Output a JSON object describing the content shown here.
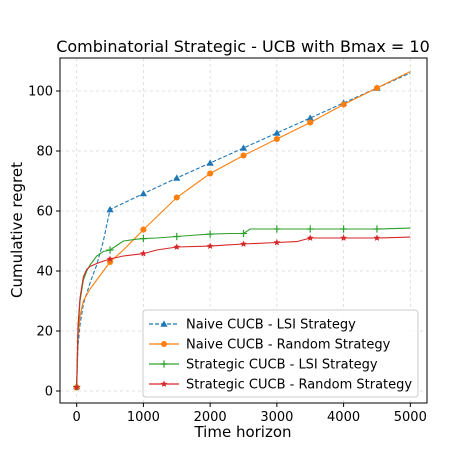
{
  "chart_data": {
    "type": "line",
    "title": "Combinatorial Strategic - UCB with Bmax = 10",
    "xlabel": "Time horizon",
    "ylabel": "Cumulative regret",
    "xlim": [
      -250,
      5250
    ],
    "ylim": [
      -4,
      111
    ],
    "xticks": [
      0,
      1000,
      2000,
      3000,
      4000,
      5000
    ],
    "yticks": [
      0,
      20,
      40,
      60,
      80,
      100
    ],
    "grid": true,
    "legend_position": "lower-right",
    "series": [
      {
        "name": "Naive CUCB - LSI Strategy",
        "color": "#1f77b4",
        "line_style": "dashed",
        "marker": "triangle",
        "x": [
          0,
          20,
          50,
          100,
          200,
          300,
          400,
          500,
          1000,
          1500,
          2000,
          2500,
          3000,
          3500,
          4000,
          4500,
          5000
        ],
        "y": [
          1.5,
          15,
          22,
          29,
          36,
          42,
          50,
          60.5,
          65.8,
          71,
          76,
          81,
          86,
          91,
          96,
          101,
          106
        ],
        "marker_x": [
          0,
          500,
          1000,
          1500,
          2000,
          2500,
          3000,
          3500,
          4000,
          4500
        ],
        "marker_y": [
          1.5,
          60.5,
          65.8,
          71,
          76,
          81,
          86,
          91,
          96,
          101
        ]
      },
      {
        "name": "Naive CUCB - Random Strategy",
        "color": "#ff7f0e",
        "line_style": "solid",
        "marker": "circle",
        "x": [
          0,
          20,
          50,
          100,
          200,
          300,
          400,
          500,
          700,
          1000,
          1500,
          2000,
          2500,
          3000,
          3500,
          4000,
          4500,
          5000
        ],
        "y": [
          1.2,
          18,
          25,
          30,
          34,
          37,
          40,
          43,
          47,
          53.8,
          64.5,
          72.5,
          78.5,
          84,
          89.5,
          95.5,
          101,
          106.5
        ],
        "marker_x": [
          0,
          500,
          1000,
          1500,
          2000,
          2500,
          3000,
          3500,
          4000,
          4500
        ],
        "marker_y": [
          1.2,
          43,
          53.8,
          64.5,
          72.5,
          78.5,
          84,
          89.5,
          95.5,
          101
        ]
      },
      {
        "name": "Strategic CUCB - LSI Strategy",
        "color": "#2ca02c",
        "line_style": "solid",
        "marker": "plus",
        "x": [
          0,
          20,
          50,
          100,
          150,
          200,
          300,
          400,
          500,
          600,
          700,
          800,
          900,
          1000,
          1200,
          1500,
          1800,
          2000,
          2300,
          2500,
          2600,
          3000,
          3500,
          4000,
          4500,
          5000
        ],
        "y": [
          1.5,
          20,
          30,
          37,
          40,
          42,
          45,
          46.5,
          47,
          48.5,
          50,
          50.3,
          50.6,
          50.8,
          51,
          51.5,
          52,
          52.3,
          52.5,
          52.5,
          54,
          54,
          54,
          54,
          54,
          54.3
        ],
        "marker_x": [
          0,
          500,
          1000,
          1500,
          2000,
          2500,
          3000,
          3500,
          4000,
          4500
        ],
        "marker_y": [
          1.5,
          47,
          50.8,
          51.5,
          52.3,
          52.5,
          54,
          54,
          54,
          54
        ]
      },
      {
        "name": "Strategic CUCB - Random Strategy",
        "color": "#d62728",
        "line_style": "solid",
        "marker": "star",
        "x": [
          0,
          20,
          50,
          100,
          150,
          200,
          300,
          400,
          500,
          700,
          1000,
          1200,
          1500,
          2000,
          2200,
          2500,
          3000,
          3300,
          3500,
          4000,
          4500,
          5000
        ],
        "y": [
          1.2,
          22,
          31,
          38,
          40.5,
          41.5,
          42.5,
          43.3,
          44,
          45,
          45.8,
          47,
          48,
          48.3,
          48.6,
          49,
          49.5,
          49.8,
          51,
          51,
          51,
          51.3
        ],
        "marker_x": [
          0,
          500,
          1000,
          1500,
          2000,
          2500,
          3000,
          3500,
          4000,
          4500
        ],
        "marker_y": [
          1.2,
          44,
          45.8,
          48,
          48.3,
          49,
          49.5,
          51,
          51,
          51
        ]
      }
    ]
  }
}
